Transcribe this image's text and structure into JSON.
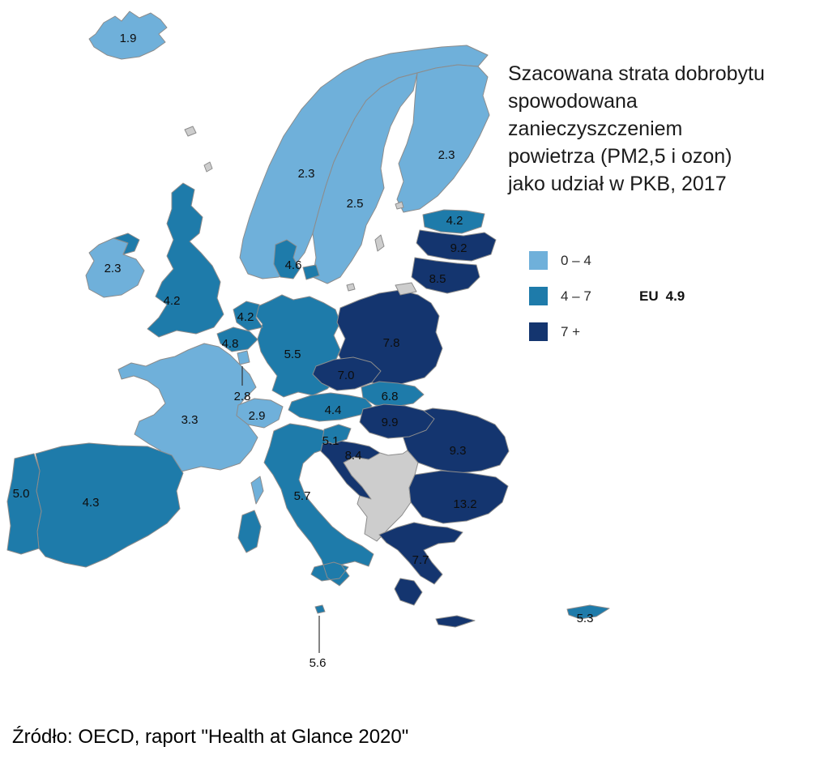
{
  "title": {
    "lines": [
      "Szacowana strata dobrobytu",
      "spowodowana",
      "zanieczyszczeniem",
      "powietrza (PM2,5 i ozon)",
      "jako udział w PKB, 2017"
    ]
  },
  "legend": {
    "items": [
      {
        "key": "low",
        "label": "0 – 4",
        "color": "#6FB0DA"
      },
      {
        "key": "mid",
        "label": "4 – 7",
        "color": "#1E7BAA"
      },
      {
        "key": "high",
        "label": "7 +",
        "color": "#14356F"
      }
    ],
    "eu_label": "EU",
    "eu_value": "4.9"
  },
  "map": {
    "non_eu_color": "#CDCDCD",
    "border_color": "#8C8C8C",
    "sea_color": "#FFFFFF",
    "label_color": "#0D0D0D",
    "countries": [
      {
        "id": "iceland",
        "value": "1.9",
        "category": "low",
        "label": [
          158,
          47
        ]
      },
      {
        "id": "norway",
        "value": "2.3",
        "category": "low",
        "label": [
          378,
          214
        ]
      },
      {
        "id": "sweden",
        "value": "2.5",
        "category": "low",
        "label": [
          438,
          251
        ]
      },
      {
        "id": "finland",
        "value": "2.3",
        "category": "low",
        "label": [
          551,
          191
        ]
      },
      {
        "id": "estonia",
        "value": "4.2",
        "category": "mid",
        "label": [
          561,
          272
        ]
      },
      {
        "id": "latvia",
        "value": "9.2",
        "category": "high",
        "label": [
          566,
          306
        ]
      },
      {
        "id": "lithuania",
        "value": "8.5",
        "category": "high",
        "label": [
          540,
          344
        ]
      },
      {
        "id": "ireland",
        "value": "2.3",
        "category": "low",
        "label": [
          139,
          331
        ]
      },
      {
        "id": "united-kingdom",
        "value": "4.2",
        "category": "mid",
        "label": [
          212,
          371
        ]
      },
      {
        "id": "denmark",
        "value": "4.6",
        "category": "mid",
        "label": [
          362,
          327
        ]
      },
      {
        "id": "netherlands",
        "value": "4.2",
        "category": "mid",
        "label": [
          303,
          391
        ]
      },
      {
        "id": "belgium",
        "value": "4.8",
        "category": "mid",
        "label": [
          284,
          424
        ]
      },
      {
        "id": "luxembourg",
        "value": "2.8",
        "category": "low",
        "label": [
          299,
          489
        ]
      },
      {
        "id": "germany",
        "value": "5.5",
        "category": "mid",
        "label": [
          361,
          437
        ]
      },
      {
        "id": "poland",
        "value": "7.8",
        "category": "high",
        "label": [
          483,
          423
        ]
      },
      {
        "id": "czechia",
        "value": "7.0",
        "category": "high",
        "label": [
          427,
          463
        ]
      },
      {
        "id": "slovakia",
        "value": "6.8",
        "category": "mid",
        "label": [
          481,
          489
        ]
      },
      {
        "id": "austria",
        "value": "4.4",
        "category": "mid",
        "label": [
          411,
          506
        ]
      },
      {
        "id": "switzerland",
        "value": "2.9",
        "category": "low",
        "label": [
          317,
          513
        ]
      },
      {
        "id": "france",
        "value": "3.3",
        "category": "low",
        "label": [
          234,
          518
        ]
      },
      {
        "id": "spain",
        "value": "4.3",
        "category": "mid",
        "label": [
          112,
          620
        ]
      },
      {
        "id": "portugal",
        "value": "5.0",
        "category": "mid",
        "label": [
          26,
          609
        ]
      },
      {
        "id": "italy",
        "value": "5.7",
        "category": "mid",
        "label": [
          373,
          612
        ]
      },
      {
        "id": "slovenia",
        "value": "5.1",
        "category": "mid",
        "label": [
          408,
          544
        ]
      },
      {
        "id": "croatia",
        "value": "8.4",
        "category": "high",
        "label": [
          436,
          562
        ]
      },
      {
        "id": "hungary",
        "value": "9.9",
        "category": "high",
        "label": [
          481,
          521
        ]
      },
      {
        "id": "romania",
        "value": "9.3",
        "category": "high",
        "label": [
          565,
          556
        ]
      },
      {
        "id": "bulgaria",
        "value": "13.2",
        "category": "high",
        "label": [
          574,
          622
        ]
      },
      {
        "id": "greece",
        "value": "7.7",
        "category": "high",
        "label": [
          519,
          691
        ]
      },
      {
        "id": "cyprus",
        "value": "5.3",
        "category": "mid",
        "label": [
          722,
          763
        ]
      },
      {
        "id": "malta",
        "value": "5.6",
        "category": "mid",
        "label": [
          392,
          818
        ]
      }
    ]
  },
  "source": "Źródło: OECD, raport \"Health at Glance 2020\""
}
